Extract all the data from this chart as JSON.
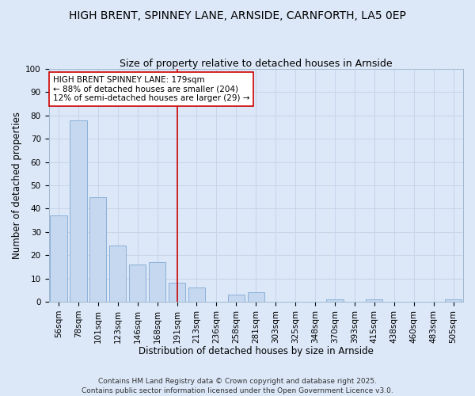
{
  "title": "HIGH BRENT, SPINNEY LANE, ARNSIDE, CARNFORTH, LA5 0EP",
  "subtitle": "Size of property relative to detached houses in Arnside",
  "xlabel": "Distribution of detached houses by size in Arnside",
  "ylabel": "Number of detached properties",
  "categories": [
    "56sqm",
    "78sqm",
    "101sqm",
    "123sqm",
    "146sqm",
    "168sqm",
    "191sqm",
    "213sqm",
    "236sqm",
    "258sqm",
    "281sqm",
    "303sqm",
    "325sqm",
    "348sqm",
    "370sqm",
    "393sqm",
    "415sqm",
    "438sqm",
    "460sqm",
    "483sqm",
    "505sqm"
  ],
  "values": [
    37,
    78,
    45,
    24,
    16,
    17,
    8,
    6,
    0,
    3,
    4,
    0,
    0,
    0,
    1,
    0,
    1,
    0,
    0,
    0,
    1
  ],
  "bar_color": "#c5d8f0",
  "bar_edge_color": "#8ab0d8",
  "vline_x_index": 6,
  "vline_color": "#cc0000",
  "annotation_text": "HIGH BRENT SPINNEY LANE: 179sqm\n← 88% of detached houses are smaller (204)\n12% of semi-detached houses are larger (29) →",
  "annotation_box_color": "#ffffff",
  "annotation_box_edge": "#cc0000",
  "ylim": [
    0,
    100
  ],
  "yticks": [
    0,
    10,
    20,
    30,
    40,
    50,
    60,
    70,
    80,
    90,
    100
  ],
  "grid_color": "#c8d4e8",
  "bg_color": "#dce8f8",
  "footer": "Contains HM Land Registry data © Crown copyright and database right 2025.\nContains public sector information licensed under the Open Government Licence v3.0.",
  "title_fontsize": 10,
  "subtitle_fontsize": 9,
  "xlabel_fontsize": 8.5,
  "ylabel_fontsize": 8.5,
  "tick_fontsize": 7.5,
  "annotation_fontsize": 7.5,
  "footer_fontsize": 6.5
}
